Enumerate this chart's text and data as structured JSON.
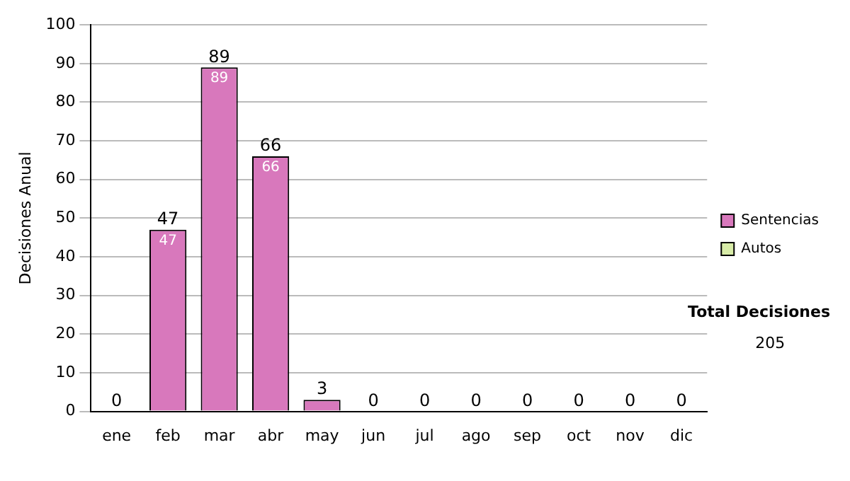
{
  "chart_data": {
    "type": "bar",
    "ylabel": "Decisiones Anual",
    "categories": [
      "ene",
      "feb",
      "mar",
      "abr",
      "may",
      "jun",
      "jul",
      "ago",
      "sep",
      "oct",
      "nov",
      "dic"
    ],
    "series": [
      {
        "name": "Sentencias",
        "color": "#d878bc",
        "values": [
          0,
          47,
          89,
          66,
          3,
          0,
          0,
          0,
          0,
          0,
          0,
          0
        ],
        "value_labels": [
          null,
          "47",
          "89",
          "66",
          null,
          null,
          null,
          null,
          null,
          null,
          null,
          null
        ]
      },
      {
        "name": "Autos",
        "color": "#d8eca8",
        "values": [
          0,
          0,
          0,
          0,
          0,
          0,
          0,
          0,
          0,
          0,
          0,
          0
        ]
      }
    ],
    "stacked": true,
    "totals": [
      "0",
      "47",
      "89",
      "66",
      "3",
      "0",
      "0",
      "0",
      "0",
      "0",
      "0",
      "0"
    ],
    "ylim": [
      0,
      100
    ],
    "yticks": [
      0,
      10,
      20,
      30,
      40,
      50,
      60,
      70,
      80,
      90,
      100
    ],
    "grid": "y",
    "legend": "right",
    "annotations": [
      "Total Decisiones",
      "205"
    ]
  }
}
